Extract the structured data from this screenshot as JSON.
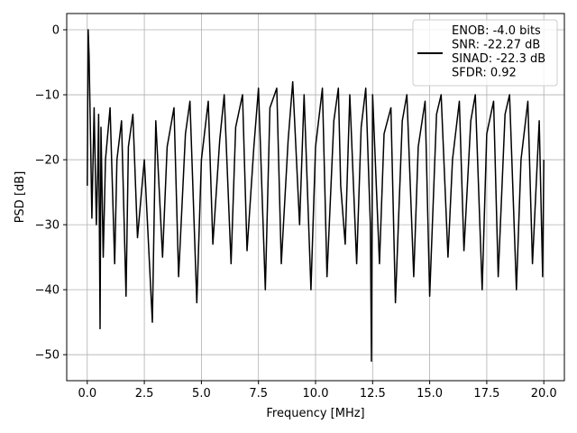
{
  "chart_data": {
    "type": "line",
    "xlabel": "Frequency [MHz]",
    "ylabel": "PSD [dB]",
    "xlim": [
      -0.9,
      20.9
    ],
    "ylim": [
      -54,
      2.5
    ],
    "xticks": [
      0.0,
      2.5,
      5.0,
      7.5,
      10.0,
      12.5,
      15.0,
      17.5,
      20.0
    ],
    "xtick_labels": [
      "0.0",
      "2.5",
      "5.0",
      "7.5",
      "10.0",
      "12.5",
      "15.0",
      "17.5",
      "20.0"
    ],
    "yticks": [
      0,
      -10,
      -20,
      -30,
      -40,
      -50
    ],
    "ytick_labels": [
      "0",
      "−10",
      "−20",
      "−30",
      "−40",
      "−50"
    ],
    "grid": true,
    "legend_position": "upper-right",
    "series": [
      {
        "color": "#000000",
        "x": [
          0.0,
          0.04,
          0.08,
          0.15,
          0.2,
          0.3,
          0.4,
          0.46,
          0.5,
          0.56,
          0.6,
          0.7,
          0.8,
          1.0,
          1.2,
          1.3,
          1.5,
          1.7,
          1.8,
          2.0,
          2.2,
          2.5,
          2.85,
          3.0,
          3.3,
          3.5,
          3.8,
          4.0,
          4.3,
          4.5,
          4.8,
          5.0,
          5.3,
          5.5,
          5.8,
          6.0,
          6.3,
          6.5,
          6.8,
          7.0,
          7.3,
          7.5,
          7.8,
          8.0,
          8.3,
          8.5,
          8.8,
          9.0,
          9.3,
          9.5,
          9.8,
          10.0,
          10.3,
          10.5,
          10.8,
          11.0,
          11.1,
          11.3,
          11.5,
          11.8,
          12.0,
          12.2,
          12.4,
          12.45,
          12.5,
          12.8,
          13.0,
          13.3,
          13.5,
          13.8,
          14.0,
          14.3,
          14.5,
          14.8,
          15.0,
          15.3,
          15.5,
          15.8,
          16.0,
          16.3,
          16.5,
          16.8,
          17.0,
          17.3,
          17.5,
          17.8,
          18.0,
          18.3,
          18.5,
          18.8,
          19.0,
          19.3,
          19.5,
          19.8,
          19.95,
          20.0
        ],
        "y": [
          -24,
          0,
          -4,
          -18,
          -29,
          -12,
          -30,
          -22,
          -13,
          -46,
          -15,
          -35,
          -20,
          -12,
          -36,
          -20,
          -14,
          -41,
          -18,
          -13,
          -32,
          -20,
          -45,
          -14,
          -35,
          -18,
          -12,
          -38,
          -16,
          -11,
          -42,
          -20,
          -11,
          -33,
          -17,
          -10,
          -36,
          -15,
          -10,
          -34,
          -18,
          -9,
          -40,
          -12,
          -9,
          -36,
          -17,
          -8,
          -30,
          -10,
          -40,
          -18,
          -9,
          -38,
          -14,
          -9,
          -24,
          -33,
          -10,
          -36,
          -15,
          -9,
          -30,
          -51,
          -10,
          -36,
          -16,
          -12,
          -42,
          -14,
          -10,
          -38,
          -18,
          -11,
          -41,
          -13,
          -10,
          -35,
          -20,
          -11,
          -34,
          -14,
          -10,
          -40,
          -16,
          -11,
          -38,
          -13,
          -10,
          -40,
          -20,
          -11,
          -36,
          -14,
          -38,
          -20
        ]
      }
    ],
    "legend": {
      "lines": [
        "ENOB: -4.0 bits",
        "SNR: -22.27 dB",
        "SINAD: -22.3 dB",
        "SFDR: 0.92"
      ]
    }
  }
}
